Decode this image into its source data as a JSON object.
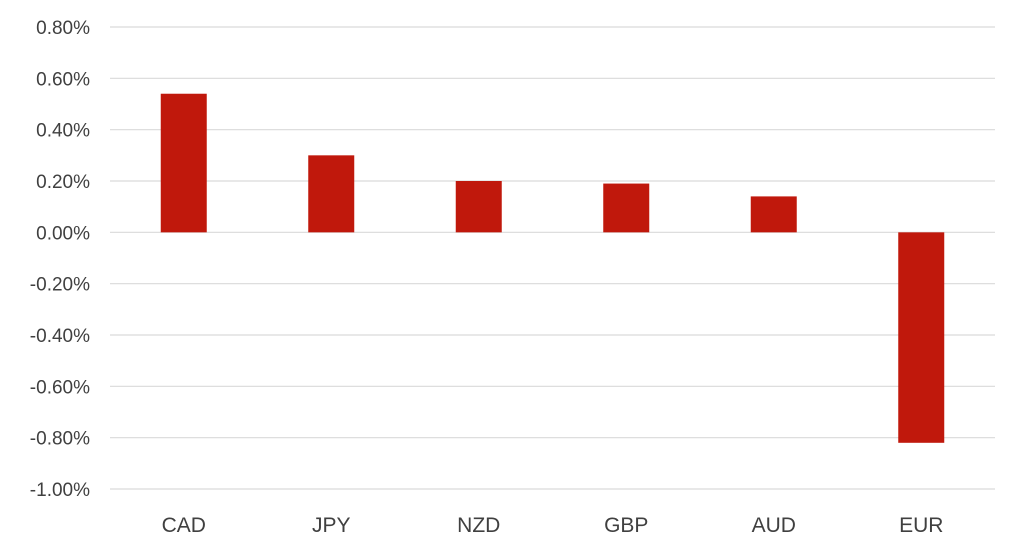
{
  "chart_data": {
    "type": "bar",
    "title": "",
    "xlabel": "",
    "ylabel": "",
    "categories": [
      "CAD",
      "JPY",
      "NZD",
      "GBP",
      "AUD",
      "EUR"
    ],
    "values": [
      0.54,
      0.3,
      0.2,
      0.19,
      0.14,
      -0.82
    ],
    "ylim": [
      -1.0,
      0.8
    ],
    "y_ticks": [
      0.8,
      0.6,
      0.4,
      0.2,
      0.0,
      -0.2,
      -0.4,
      -0.6,
      -0.8,
      -1.0
    ],
    "y_tick_labels": [
      "0.80%",
      "0.60%",
      "0.40%",
      "0.20%",
      "0.00%",
      "-0.20%",
      "-0.40%",
      "-0.60%",
      "-0.80%",
      "-1.00%"
    ],
    "grid": true,
    "legend": "none",
    "bar_color": "#c0180c",
    "grid_color": "#d9d9d9",
    "text_color": "#404040"
  }
}
